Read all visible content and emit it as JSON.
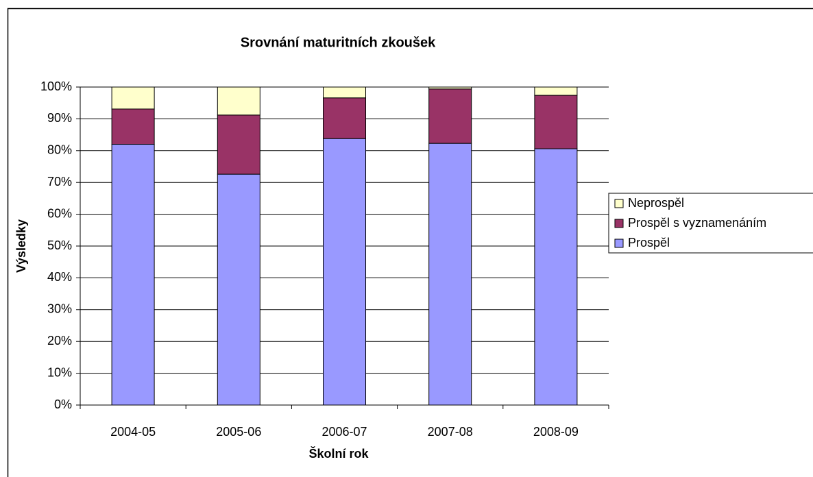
{
  "chart_data": {
    "type": "stacked_bar",
    "title": "Srovnání maturitních zkoušek",
    "x_label": "Školní rok",
    "y_label": "Výsledky",
    "categories": [
      "2004-05",
      "2005-06",
      "2006-07",
      "2007-08",
      "2008-09"
    ],
    "series": [
      {
        "name": "Prospěl",
        "color": "#9999ff",
        "values": [
          82,
          72.6,
          83.8,
          82.3,
          80.6
        ]
      },
      {
        "name": "Prospěl s vyznamenáním",
        "color": "#993366",
        "values": [
          11.1,
          18.6,
          12.8,
          17.1,
          16.8
        ]
      },
      {
        "name": "Neprospěl",
        "color": "#ffffcc",
        "values": [
          6.9,
          8.8,
          3.4,
          0.6,
          2.6
        ]
      }
    ],
    "ylim": [
      0,
      100
    ],
    "yticks": [
      {
        "value": 0,
        "label": "0%"
      },
      {
        "value": 10,
        "label": "10%"
      },
      {
        "value": 20,
        "label": "20%"
      },
      {
        "value": 30,
        "label": "30%"
      },
      {
        "value": 40,
        "label": "40%"
      },
      {
        "value": 50,
        "label": "50%"
      },
      {
        "value": 60,
        "label": "60%"
      },
      {
        "value": 70,
        "label": "70%"
      },
      {
        "value": 80,
        "label": "80%"
      },
      {
        "value": 90,
        "label": "90%"
      },
      {
        "value": 100,
        "label": "100%"
      }
    ],
    "grid": true,
    "legend": "right"
  }
}
